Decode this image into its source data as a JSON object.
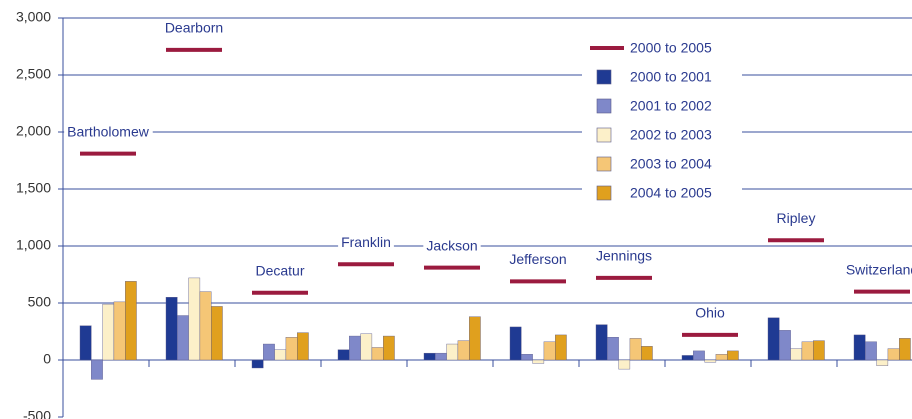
{
  "chart_data": {
    "type": "bar",
    "categories": [
      "Bartholomew",
      "Dearborn",
      "Decatur",
      "Franklin",
      "Jackson",
      "Jefferson",
      "Jennings",
      "Ohio",
      "Ripley",
      "Switzerland"
    ],
    "series": [
      {
        "name": "2000 to 2005",
        "color": "#9b1b3f",
        "marker": "line",
        "values": [
          1810,
          2720,
          590,
          840,
          810,
          690,
          720,
          220,
          1050,
          600
        ]
      },
      {
        "name": "2000 to 2001",
        "color": "#1f3a93",
        "values": [
          300,
          550,
          -70,
          90,
          60,
          290,
          310,
          40,
          370,
          220
        ]
      },
      {
        "name": "2001 to 2002",
        "color": "#7f88c9",
        "values": [
          -170,
          390,
          140,
          210,
          60,
          50,
          200,
          80,
          260,
          160
        ]
      },
      {
        "name": "2002 to 2003",
        "color": "#fcf0c9",
        "values": [
          490,
          720,
          90,
          230,
          140,
          -30,
          -80,
          -20,
          100,
          -50
        ]
      },
      {
        "name": "2003 to 2004",
        "color": "#f5c676",
        "values": [
          510,
          600,
          200,
          110,
          170,
          160,
          190,
          50,
          160,
          100
        ]
      },
      {
        "name": "2004 to 2005",
        "color": "#e0a01e",
        "values": [
          690,
          470,
          240,
          210,
          380,
          220,
          120,
          80,
          170,
          190
        ]
      }
    ],
    "ylim": [
      -500,
      3000
    ],
    "yticks": [
      -500,
      0,
      500,
      {
        "value": 1000,
        "label": "1,000"
      },
      {
        "value": 1500,
        "label": "1,500"
      },
      {
        "value": 2000,
        "label": "2,000"
      },
      {
        "value": 2500,
        "label": "2,500"
      },
      {
        "value": 3000,
        "label": "3,000"
      }
    ],
    "grid": true,
    "legend": "right"
  }
}
